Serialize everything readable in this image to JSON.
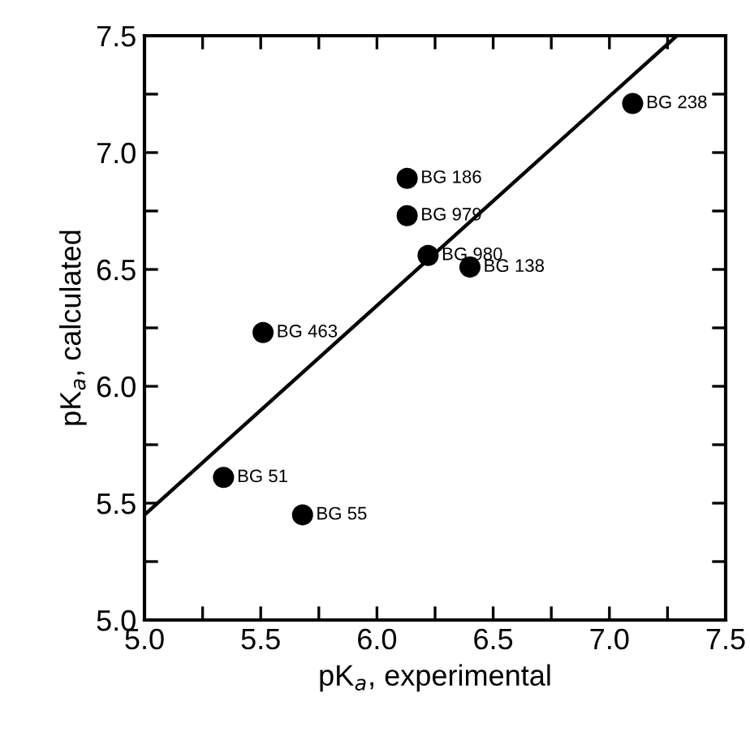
{
  "chart_data": {
    "type": "scatter",
    "xlabel": "pK$_{a}$, experimental",
    "ylabel": "pK$_{a}$, calculated",
    "xlim": [
      5.0,
      7.5
    ],
    "ylim": [
      5.0,
      7.5
    ],
    "xticks": [
      {
        "value": 5,
        "label": "5.0"
      },
      {
        "value": 5.25,
        "label": null
      },
      5.5,
      {
        "value": 5.75,
        "label": null
      },
      {
        "value": 6,
        "label": "6.0"
      },
      {
        "value": 6.25,
        "label": null
      },
      6.5,
      {
        "value": 6.75,
        "label": null
      },
      {
        "value": 7,
        "label": "7.0"
      },
      {
        "value": 7.25,
        "label": null
      },
      7.5
    ],
    "yticks": [
      {
        "value": 5,
        "label": "5.0"
      },
      {
        "value": 5.25,
        "label": null
      },
      5.5,
      {
        "value": 5.75,
        "label": null
      },
      {
        "value": 6,
        "label": "6.0"
      },
      {
        "value": 6.25,
        "label": null
      },
      6.5,
      {
        "value": 6.75,
        "label": null
      },
      {
        "value": 7,
        "label": "7.0"
      },
      {
        "value": 7.25,
        "label": null
      },
      7.5
    ],
    "grid": false,
    "legend": false,
    "marker": "circle",
    "series": [
      {
        "color": "#000000",
        "x": [
          7.1,
          6.13,
          6.13,
          6.22,
          6.4,
          5.51,
          5.34,
          5.68
        ],
        "values": [
          7.21,
          6.89,
          6.73,
          6.56,
          6.51,
          6.23,
          5.61,
          5.45
        ],
        "value_labels": [
          "BG 238",
          "BG 186",
          "BG 979",
          "BG 980",
          "BG 138",
          "BG 463",
          "BG 51",
          "BG 55"
        ]
      },
      {
        "type": "line",
        "color": "#000000",
        "x": [
          5.0,
          7.29
        ],
        "values": [
          5.45,
          7.5
        ],
        "marker": "none",
        "line_style": "solid"
      }
    ]
  }
}
